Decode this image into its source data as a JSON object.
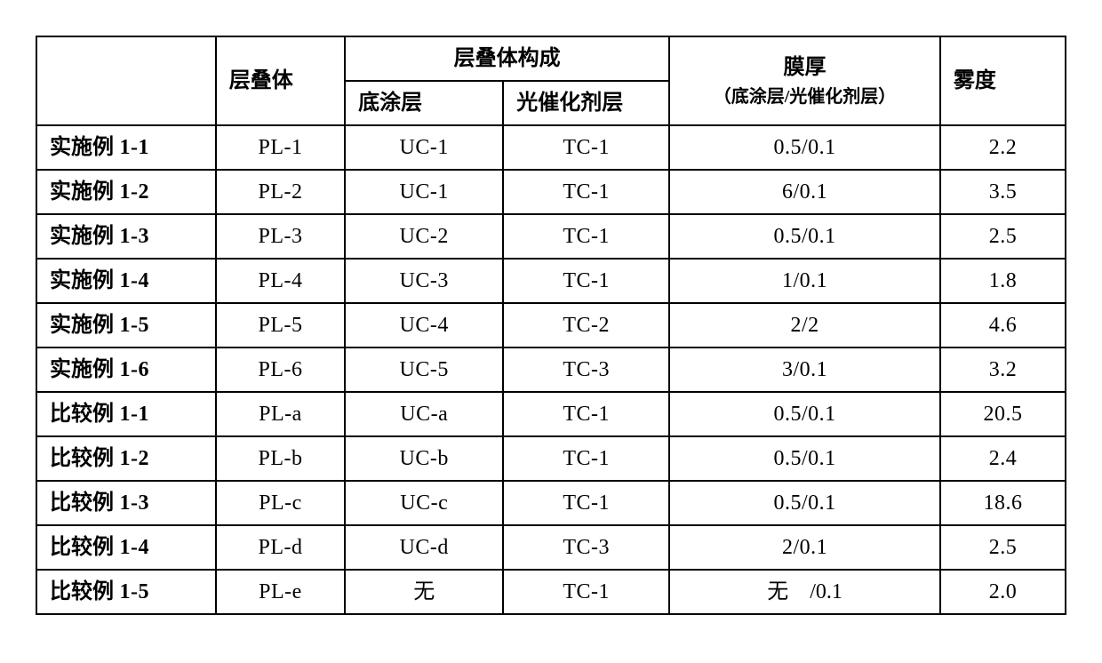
{
  "headers": {
    "blank": "",
    "laminate": "层叠体",
    "composition": "层叠体构成",
    "uc": "底涂层",
    "tc": "光催化剂层",
    "thickness_main": "膜厚",
    "thickness_sub": "（底涂层/光催化剂层）",
    "haze": "雾度"
  },
  "rows": [
    {
      "label_cn": "实施例",
      "label_no": " 1-1",
      "lam": "PL-1",
      "uc": "UC-1",
      "tc": "TC-1",
      "thk": "0.5/0.1",
      "haze": "2.2"
    },
    {
      "label_cn": "实施例",
      "label_no": " 1-2",
      "lam": "PL-2",
      "uc": "UC-1",
      "tc": "TC-1",
      "thk": "6/0.1",
      "haze": "3.5"
    },
    {
      "label_cn": "实施例",
      "label_no": " 1-3",
      "lam": "PL-3",
      "uc": "UC-2",
      "tc": "TC-1",
      "thk": "0.5/0.1",
      "haze": "2.5"
    },
    {
      "label_cn": "实施例",
      "label_no": " 1-4",
      "lam": "PL-4",
      "uc": "UC-3",
      "tc": "TC-1",
      "thk": "1/0.1",
      "haze": "1.8"
    },
    {
      "label_cn": "实施例",
      "label_no": " 1-5",
      "lam": "PL-5",
      "uc": "UC-4",
      "tc": "TC-2",
      "thk": "2/2",
      "haze": "4.6"
    },
    {
      "label_cn": "实施例",
      "label_no": " 1-6",
      "lam": "PL-6",
      "uc": "UC-5",
      "tc": "TC-3",
      "thk": "3/0.1",
      "haze": "3.2"
    },
    {
      "label_cn": "比较例",
      "label_no": " 1-1",
      "lam": "PL-a",
      "uc": "UC-a",
      "tc": "TC-1",
      "thk": "0.5/0.1",
      "haze": "20.5"
    },
    {
      "label_cn": "比较例",
      "label_no": " 1-2",
      "lam": "PL-b",
      "uc": "UC-b",
      "tc": "TC-1",
      "thk": "0.5/0.1",
      "haze": "2.4"
    },
    {
      "label_cn": "比较例",
      "label_no": " 1-3",
      "lam": "PL-c",
      "uc": "UC-c",
      "tc": "TC-1",
      "thk": "0.5/0.1",
      "haze": "18.6"
    },
    {
      "label_cn": "比较例",
      "label_no": " 1-4",
      "lam": "PL-d",
      "uc": "UC-d",
      "tc": "TC-3",
      "thk": "2/0.1",
      "haze": "2.5"
    },
    {
      "label_cn": "比较例",
      "label_no": " 1-5",
      "lam": "PL-e",
      "uc": "无",
      "tc": "TC-1",
      "thk": "无　/0.1",
      "haze": "2.0"
    }
  ]
}
